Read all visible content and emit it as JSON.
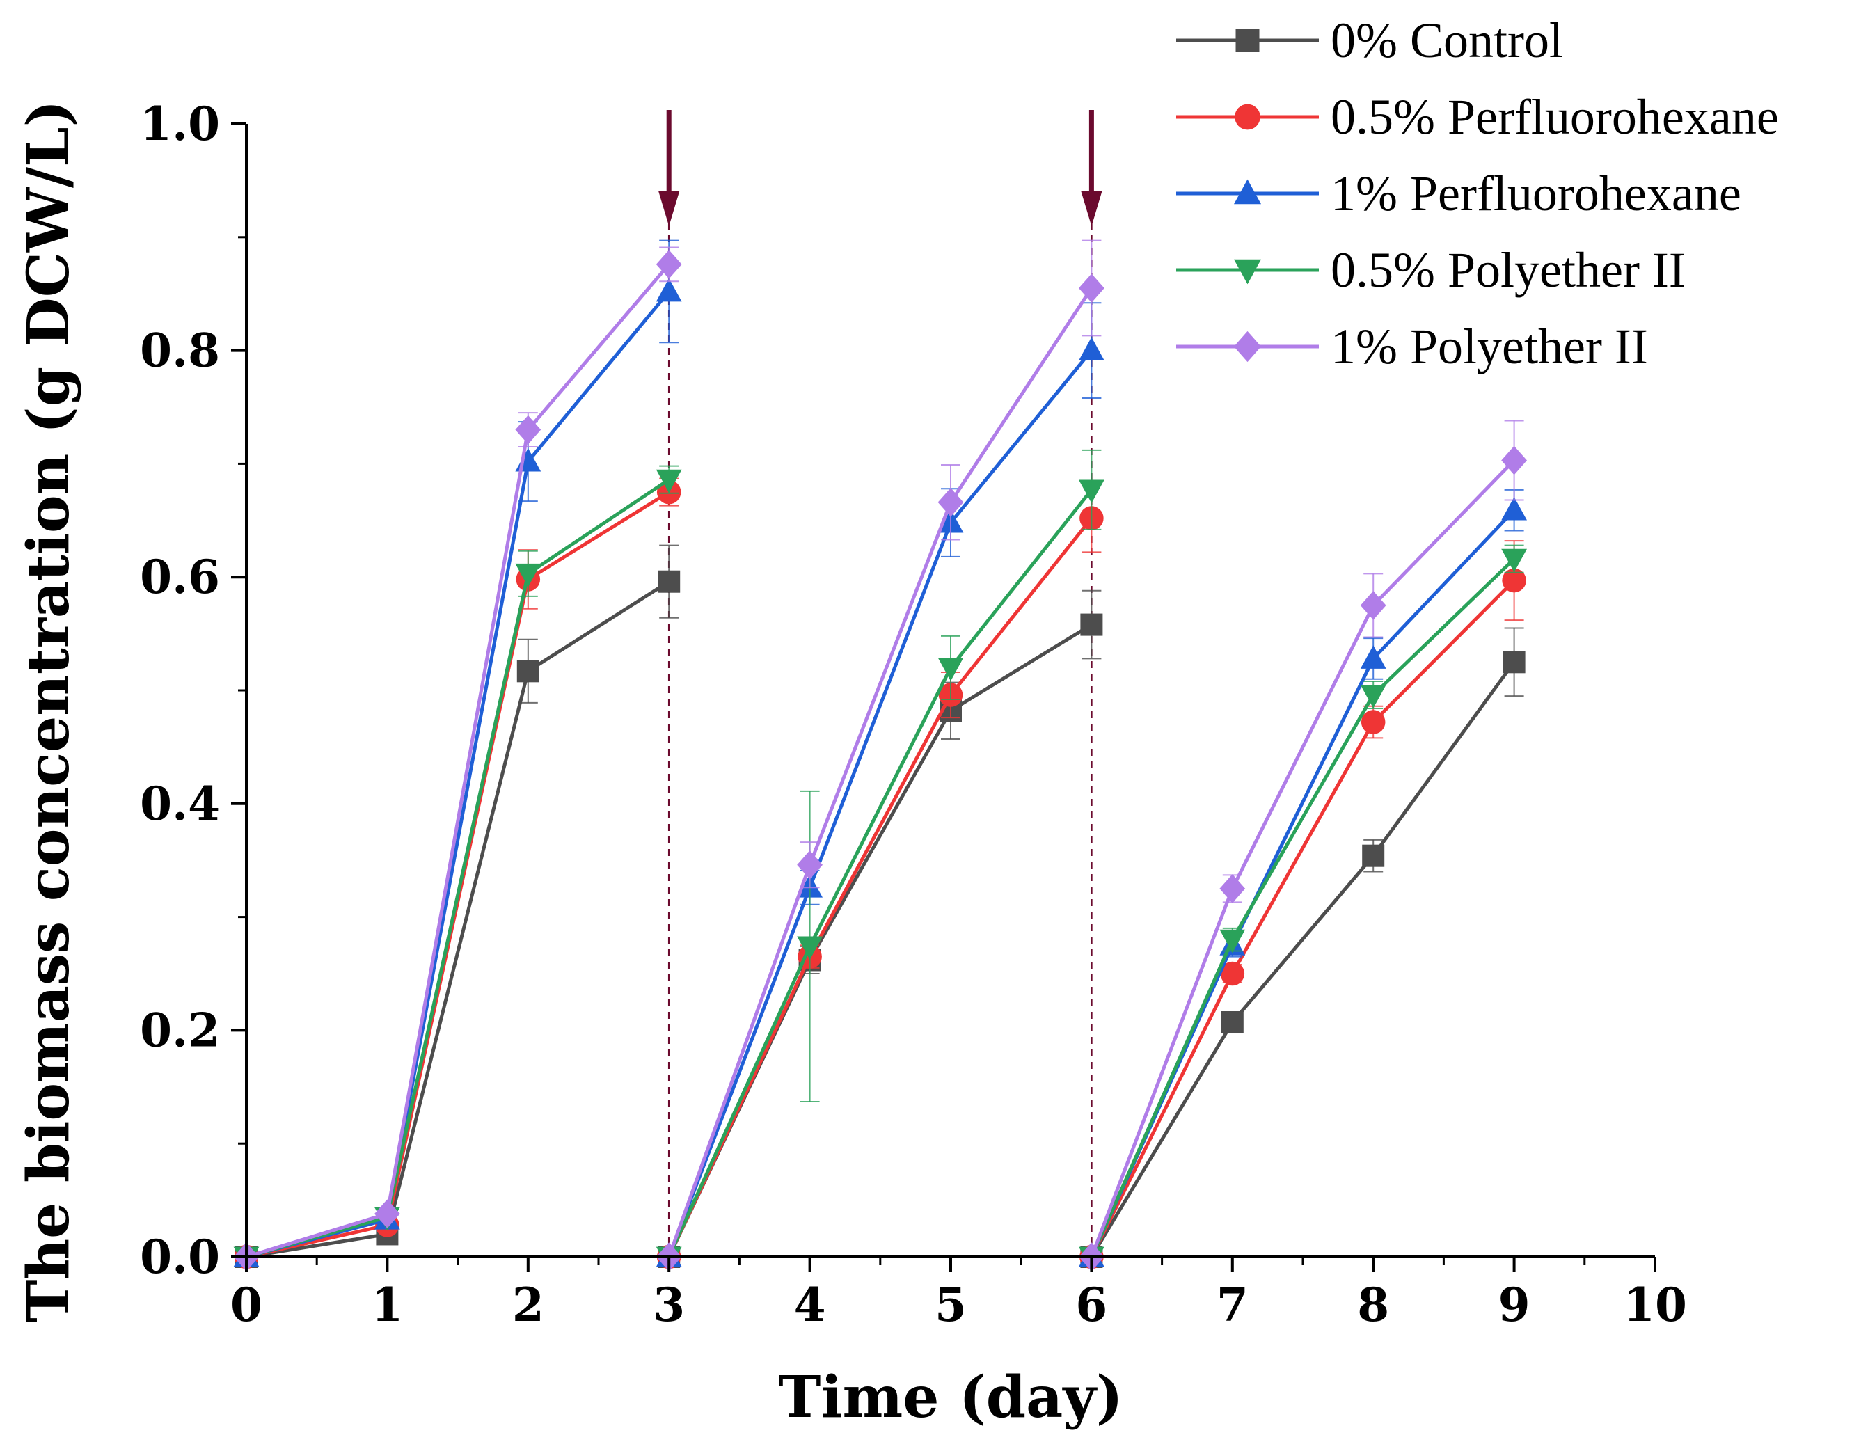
{
  "chart_data": {
    "type": "line",
    "title": "",
    "xlabel": "Time (day)",
    "ylabel": "The biomass concentration (g DCW/L)",
    "xlim": [
      0,
      10
    ],
    "ylim": [
      0,
      1.0
    ],
    "x_ticks": [
      "0",
      "1",
      "2",
      "3",
      "4",
      "5",
      "6",
      "7",
      "8",
      "9",
      "10"
    ],
    "y_ticks": [
      "0.0",
      "0.2",
      "0.4",
      "0.6",
      "0.8",
      "1.0"
    ],
    "grid": false,
    "legend_position": "top-right",
    "annotations": [
      {
        "type": "arrow-down",
        "x": 3,
        "color": "#6b0a2e"
      },
      {
        "type": "arrow-down",
        "x": 6,
        "color": "#6b0a2e"
      }
    ],
    "series": [
      {
        "name": "0% Control",
        "color": "#4d4d4d",
        "marker": "square",
        "segments": [
          [
            [
              0,
              0.0
            ],
            [
              1,
              0.02
            ],
            [
              2,
              0.517
            ],
            [
              3,
              0.596
            ]
          ],
          [
            [
              3,
              0.0
            ],
            [
              4,
              0.262
            ],
            [
              5,
              0.482
            ],
            [
              6,
              0.558
            ]
          ],
          [
            [
              6,
              0.0
            ],
            [
              7,
              0.207
            ],
            [
              8,
              0.354
            ],
            [
              9,
              0.525
            ]
          ]
        ],
        "errors": [
          [
            0.003,
            0.004,
            0.028,
            0.032
          ],
          [
            0.003,
            0.012,
            0.025,
            0.03
          ],
          [
            0.003,
            0.006,
            0.014,
            0.03
          ]
        ]
      },
      {
        "name": "0.5% Perfluorohexane",
        "color": "#ef3535",
        "marker": "circle",
        "segments": [
          [
            [
              0,
              0.0
            ],
            [
              1,
              0.028
            ],
            [
              2,
              0.598
            ],
            [
              3,
              0.675
            ]
          ],
          [
            [
              3,
              0.0
            ],
            [
              4,
              0.265
            ],
            [
              5,
              0.496
            ],
            [
              6,
              0.652
            ]
          ],
          [
            [
              6,
              0.0
            ],
            [
              7,
              0.25
            ],
            [
              8,
              0.472
            ],
            [
              9,
              0.597
            ]
          ]
        ],
        "errors": [
          [
            0.003,
            0.004,
            0.026,
            0.012
          ],
          [
            0.003,
            0.01,
            0.02,
            0.03
          ],
          [
            0.003,
            0.008,
            0.014,
            0.035
          ]
        ]
      },
      {
        "name": "1% Perfluorohexane",
        "color": "#1f5fd6",
        "marker": "triangle-up",
        "segments": [
          [
            [
              0,
              0.0
            ],
            [
              1,
              0.033
            ],
            [
              2,
              0.702
            ],
            [
              3,
              0.852
            ]
          ],
          [
            [
              3,
              0.0
            ],
            [
              4,
              0.326
            ],
            [
              5,
              0.648
            ],
            [
              6,
              0.8
            ]
          ],
          [
            [
              6,
              0.0
            ],
            [
              7,
              0.275
            ],
            [
              8,
              0.528
            ],
            [
              9,
              0.659
            ]
          ]
        ],
        "errors": [
          [
            0.003,
            0.004,
            0.035,
            0.045
          ],
          [
            0.003,
            0.015,
            0.03,
            0.042
          ],
          [
            0.003,
            0.01,
            0.018,
            0.018
          ]
        ]
      },
      {
        "name": "0.5% Polyether II",
        "color": "#2aa25a",
        "marker": "triangle-down",
        "segments": [
          [
            [
              0,
              0.0
            ],
            [
              1,
              0.035
            ],
            [
              2,
              0.603
            ],
            [
              3,
              0.686
            ]
          ],
          [
            [
              3,
              0.0
            ],
            [
              4,
              0.274
            ],
            [
              5,
              0.52
            ],
            [
              6,
              0.677
            ]
          ],
          [
            [
              6,
              0.0
            ],
            [
              7,
              0.28
            ],
            [
              8,
              0.496
            ],
            [
              9,
              0.616
            ]
          ]
        ],
        "errors": [
          [
            0.003,
            0.004,
            0.02,
            0.012
          ],
          [
            0.003,
            0.137,
            0.028,
            0.035
          ],
          [
            0.003,
            0.01,
            0.012,
            0.012
          ]
        ]
      },
      {
        "name": "1% Polyether II",
        "color": "#b07de8",
        "marker": "diamond",
        "segments": [
          [
            [
              0,
              0.0
            ],
            [
              1,
              0.038
            ],
            [
              2,
              0.73
            ],
            [
              3,
              0.876
            ]
          ],
          [
            [
              3,
              0.0
            ],
            [
              4,
              0.346
            ],
            [
              5,
              0.666
            ],
            [
              6,
              0.855
            ]
          ],
          [
            [
              6,
              0.0
            ],
            [
              7,
              0.325
            ],
            [
              8,
              0.575
            ],
            [
              9,
              0.703
            ]
          ]
        ],
        "errors": [
          [
            0.003,
            0.004,
            0.015,
            0.015
          ],
          [
            0.003,
            0.02,
            0.033,
            0.042
          ],
          [
            0.003,
            0.012,
            0.028,
            0.035
          ]
        ]
      }
    ]
  }
}
